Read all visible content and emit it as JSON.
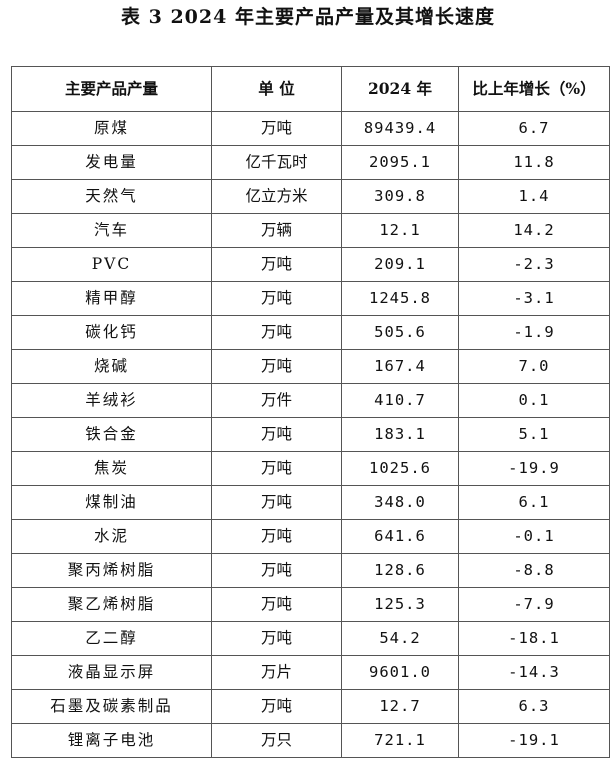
{
  "title": "表 3  2024 年主要产品产量及其增长速度",
  "headers": [
    "主要产品产量",
    "单 位",
    "2024 年",
    "比上年增长（%）"
  ],
  "rows": [
    {
      "name": "原煤",
      "unit": "万吨",
      "value": "89439.4",
      "growth": "6.7"
    },
    {
      "name": "发电量",
      "unit": "亿千瓦时",
      "value": "2095.1",
      "growth": "11.8"
    },
    {
      "name": "天然气",
      "unit": "亿立方米",
      "value": "309.8",
      "growth": "1.4"
    },
    {
      "name": "汽车",
      "unit": "万辆",
      "value": "12.1",
      "growth": "14.2"
    },
    {
      "name": "PVC",
      "unit": "万吨",
      "value": "209.1",
      "growth": "-2.3"
    },
    {
      "name": "精甲醇",
      "unit": "万吨",
      "value": "1245.8",
      "growth": "-3.1"
    },
    {
      "name": "碳化钙",
      "unit": "万吨",
      "value": "505.6",
      "growth": "-1.9"
    },
    {
      "name": "烧碱",
      "unit": "万吨",
      "value": "167.4",
      "growth": "7.0"
    },
    {
      "name": "羊绒衫",
      "unit": "万件",
      "value": "410.7",
      "growth": "0.1"
    },
    {
      "name": "铁合金",
      "unit": "万吨",
      "value": "183.1",
      "growth": "5.1"
    },
    {
      "name": "焦炭",
      "unit": "万吨",
      "value": "1025.6",
      "growth": "-19.9"
    },
    {
      "name": "煤制油",
      "unit": "万吨",
      "value": "348.0",
      "growth": "6.1"
    },
    {
      "name": "水泥",
      "unit": "万吨",
      "value": "641.6",
      "growth": "-0.1"
    },
    {
      "name": "聚丙烯树脂",
      "unit": "万吨",
      "value": "128.6",
      "growth": "-8.8"
    },
    {
      "name": "聚乙烯树脂",
      "unit": "万吨",
      "value": "125.3",
      "growth": "-7.9"
    },
    {
      "name": "乙二醇",
      "unit": "万吨",
      "value": "54.2",
      "growth": "-18.1"
    },
    {
      "name": "液晶显示屏",
      "unit": "万片",
      "value": "9601.0",
      "growth": "-14.3"
    },
    {
      "name": "石墨及碳素制品",
      "unit": "万吨",
      "value": "12.7",
      "growth": "6.3"
    },
    {
      "name": "锂离子电池",
      "unit": "万只",
      "value": "721.1",
      "growth": "-19.1"
    }
  ]
}
